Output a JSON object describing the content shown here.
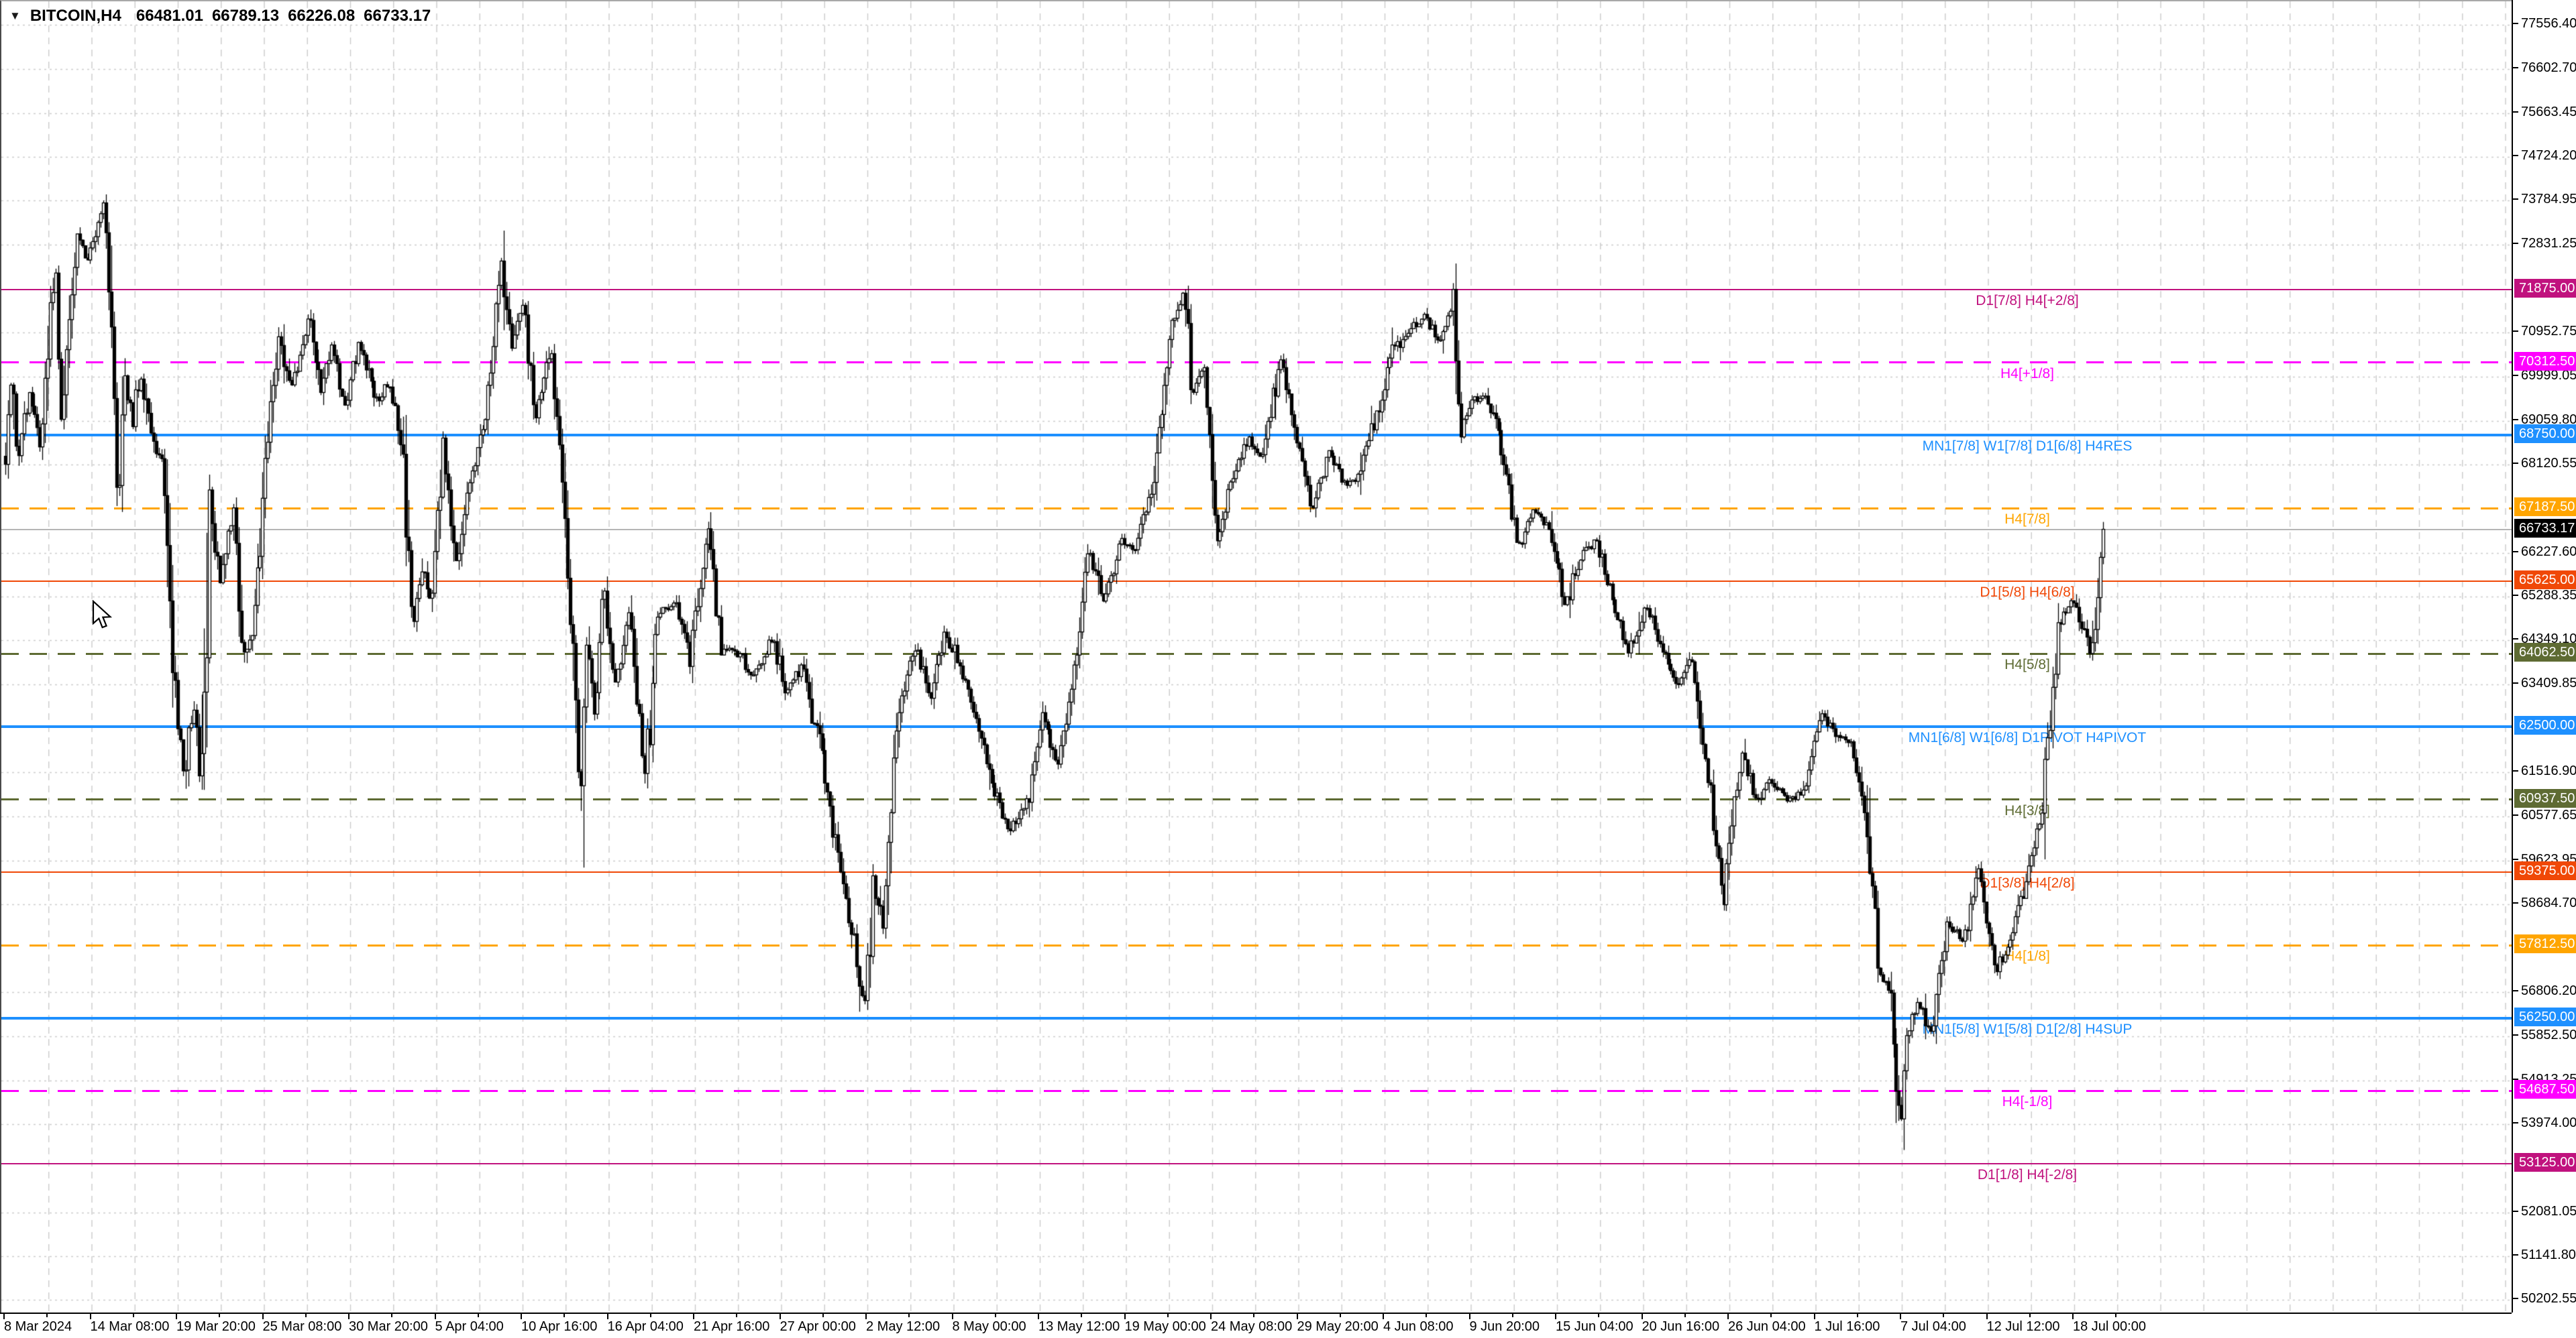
{
  "header": {
    "dropdown_icon": "▼",
    "symbol": "BITCOIN,H4",
    "open": "66481.01",
    "high": "66789.13",
    "low": "66226.08",
    "close": "66733.17"
  },
  "colors": {
    "background": "#ffffff",
    "grid": "#cbcbcb",
    "bar_outline": "#000000",
    "bull_fill": "#ffffff",
    "bear_fill": "#000000",
    "bid_line": "#b5b5b5",
    "axis_text": "#000000",
    "current_price_badge": "#000000",
    "blue": "#1e90ff",
    "magenta": "#ff00ff",
    "violet_red": "#c0127e",
    "orange": "#ffa500",
    "orange_red": "#f04807",
    "olive": "#5e6b33"
  },
  "chart_data": {
    "type": "candlestick",
    "symbol": "BITCOIN",
    "timeframe": "H4",
    "current_bar_ohlc": {
      "open": 66481.01,
      "high": 66789.13,
      "low": 66226.08,
      "close": 66733.17
    },
    "last_price": 66733.17,
    "bid_price": {
      "value": "66733.17",
      "price": 66733.17
    },
    "y_axis_ticks": [
      "77556.40",
      "76602.70",
      "75663.45",
      "74724.20",
      "73784.95",
      "72831.25",
      "70952.75",
      "69999.05",
      "69059.80",
      "68120.55",
      "66227.60",
      "65288.35",
      "64349.10",
      "63409.85",
      "61516.90",
      "60577.65",
      "59623.95",
      "58684.70",
      "56806.20",
      "55852.50",
      "54913.25",
      "53974.00",
      "52081.05",
      "51141.80",
      "50202.55"
    ],
    "x_axis_labels": [
      "8 Mar 2024",
      "14 Mar 08:00",
      "19 Mar 20:00",
      "25 Mar 08:00",
      "30 Mar 20:00",
      "5 Apr 04:00",
      "10 Apr 16:00",
      "16 Apr 04:00",
      "21 Apr 16:00",
      "27 Apr 00:00",
      "2 May 12:00",
      "8 May 00:00",
      "13 May 12:00",
      "19 May 00:00",
      "24 May 08:00",
      "29 May 20:00",
      "4 Jun 08:00",
      "9 Jun 20:00",
      "15 Jun 04:00",
      "20 Jun 16:00",
      "26 Jun 04:00",
      "1 Jul 16:00",
      "7 Jul 04:00",
      "12 Jul 12:00",
      "18 Jul 00:00"
    ],
    "murrey_levels": [
      {
        "label": "D1[7/8] H4[+2/8]",
        "price": 71875.0,
        "value": "71875.00",
        "color": "violet_red",
        "style": "solid",
        "weight": 2
      },
      {
        "label": "H4[+1/8]",
        "price": 70312.5,
        "value": "70312.50",
        "color": "magenta",
        "style": "dashed",
        "weight": 3
      },
      {
        "label": "MN1[7/8] W1[7/8] D1[6/8] H4RES",
        "price": 68750.0,
        "value": "68750.00",
        "color": "blue",
        "style": "solid",
        "weight": 4
      },
      {
        "label": "H4[7/8]",
        "price": 67187.5,
        "value": "67187.50",
        "color": "orange",
        "style": "dashed",
        "weight": 3
      },
      {
        "label": "D1[5/8] H4[6/8]",
        "price": 65625.0,
        "value": "65625.00",
        "color": "orange_red",
        "style": "solid",
        "weight": 2
      },
      {
        "label": "H4[5/8]",
        "price": 64062.5,
        "value": "64062.50",
        "color": "olive",
        "style": "dashed",
        "weight": 3
      },
      {
        "label": "MN1[6/8] W1[6/8] D1PIVOT H4PIVOT",
        "price": 62500.0,
        "value": "62500.00",
        "color": "blue",
        "style": "solid",
        "weight": 4
      },
      {
        "label": "H4[3/8]",
        "price": 60937.5,
        "value": "60937.50",
        "color": "olive",
        "style": "dashed",
        "weight": 3
      },
      {
        "label": "D1[3/8] H4[2/8]",
        "price": 59375.0,
        "value": "59375.00",
        "color": "orange_red",
        "style": "solid",
        "weight": 2
      },
      {
        "label": "H4[1/8]",
        "price": 57812.5,
        "value": "57812.50",
        "color": "orange",
        "style": "dashed",
        "weight": 3
      },
      {
        "label": "MN1[5/8] W1[5/8] D1[2/8] H4SUP",
        "price": 56250.0,
        "value": "56250.00",
        "color": "blue",
        "style": "solid",
        "weight": 4
      },
      {
        "label": "H4[-1/8]",
        "price": 54687.5,
        "value": "54687.50",
        "color": "magenta",
        "style": "dashed",
        "weight": 3
      },
      {
        "label": "D1[1/8] H4[-2/8]",
        "price": 53125.0,
        "value": "53125.00",
        "color": "violet_red",
        "style": "solid",
        "weight": 2
      }
    ],
    "price_path": [
      [
        0,
        68300
      ],
      [
        0.3,
        69900
      ],
      [
        0.7,
        68200
      ],
      [
        1.5,
        69600
      ],
      [
        2.2,
        68500
      ],
      [
        3.2,
        72400
      ],
      [
        3.5,
        69100
      ],
      [
        4,
        71500
      ],
      [
        4.5,
        73000
      ],
      [
        5.2,
        72500
      ],
      [
        6.2,
        73750
      ],
      [
        6.6,
        71500
      ],
      [
        7.1,
        67000
      ],
      [
        7.5,
        69800
      ],
      [
        8,
        69000
      ],
      [
        8.5,
        70000
      ],
      [
        9.3,
        68600
      ],
      [
        10,
        67800
      ],
      [
        10.6,
        63400
      ],
      [
        11.2,
        61500
      ],
      [
        11.8,
        63000
      ],
      [
        12.3,
        60850
      ],
      [
        12.8,
        67400
      ],
      [
        13.5,
        65500
      ],
      [
        14.3,
        67200
      ],
      [
        15,
        63800
      ],
      [
        15.6,
        64600
      ],
      [
        16.3,
        67900
      ],
      [
        17.2,
        71000
      ],
      [
        18,
        69800
      ],
      [
        19.1,
        71400
      ],
      [
        19.8,
        69600
      ],
      [
        20.5,
        70700
      ],
      [
        21.3,
        69300
      ],
      [
        22.2,
        70800
      ],
      [
        23.3,
        69500
      ],
      [
        24.2,
        69900
      ],
      [
        25,
        68300
      ],
      [
        25.5,
        64600
      ],
      [
        26.2,
        65900
      ],
      [
        26.8,
        65000
      ],
      [
        27.5,
        68600
      ],
      [
        28.3,
        66000
      ],
      [
        29.2,
        67800
      ],
      [
        30.2,
        69300
      ],
      [
        31.2,
        72600
      ],
      [
        31.8,
        70600
      ],
      [
        32.5,
        71600
      ],
      [
        33.3,
        69100
      ],
      [
        34.2,
        70500
      ],
      [
        35.2,
        67100
      ],
      [
        36.1,
        60700
      ],
      [
        36.5,
        64300
      ],
      [
        37,
        62800
      ],
      [
        37.6,
        65600
      ],
      [
        38.3,
        63300
      ],
      [
        39.2,
        65000
      ],
      [
        40.1,
        61300
      ],
      [
        41,
        64900
      ],
      [
        42.1,
        65200
      ],
      [
        43,
        63900
      ],
      [
        44.1,
        66800
      ],
      [
        45,
        64200
      ],
      [
        46.1,
        64000
      ],
      [
        47,
        63600
      ],
      [
        48.2,
        64400
      ],
      [
        49.1,
        63200
      ],
      [
        50,
        63800
      ],
      [
        51.1,
        62300
      ],
      [
        52,
        60300
      ],
      [
        53.1,
        58300
      ],
      [
        54,
        56600
      ],
      [
        54.5,
        59100
      ],
      [
        55.2,
        58300
      ],
      [
        56.1,
        62900
      ],
      [
        57.2,
        64300
      ],
      [
        58.1,
        63100
      ],
      [
        59,
        64500
      ],
      [
        60.1,
        63700
      ],
      [
        61,
        62600
      ],
      [
        62.1,
        61200
      ],
      [
        63,
        60200
      ],
      [
        64.1,
        60900
      ],
      [
        65.2,
        62700
      ],
      [
        66.1,
        61700
      ],
      [
        67,
        63200
      ],
      [
        68.1,
        66300
      ],
      [
        69,
        65200
      ],
      [
        70.1,
        66500
      ],
      [
        71,
        66300
      ],
      [
        72.1,
        67600
      ],
      [
        73.2,
        71100
      ],
      [
        74.1,
        71900
      ],
      [
        74.6,
        69600
      ],
      [
        75.3,
        70300
      ],
      [
        76.1,
        66400
      ],
      [
        77,
        67800
      ],
      [
        78.1,
        68700
      ],
      [
        79,
        68300
      ],
      [
        80.1,
        70500
      ],
      [
        81,
        68800
      ],
      [
        82.1,
        67200
      ],
      [
        83.2,
        68400
      ],
      [
        84.1,
        67700
      ],
      [
        85,
        67800
      ],
      [
        86.1,
        69100
      ],
      [
        87.2,
        70600
      ],
      [
        88.1,
        71000
      ],
      [
        89.2,
        71300
      ],
      [
        90.1,
        70800
      ],
      [
        91,
        71700
      ],
      [
        91.5,
        68900
      ],
      [
        92.2,
        69500
      ],
      [
        93.1,
        69600
      ],
      [
        94,
        68500
      ],
      [
        95.1,
        66300
      ],
      [
        96,
        67200
      ],
      [
        97.1,
        66700
      ],
      [
        98,
        65200
      ],
      [
        99.1,
        66200
      ],
      [
        100,
        66500
      ],
      [
        101.1,
        65100
      ],
      [
        102,
        64100
      ],
      [
        103.1,
        65100
      ],
      [
        104,
        64300
      ],
      [
        105.1,
        63300
      ],
      [
        106,
        64000
      ],
      [
        107.1,
        61200
      ],
      [
        108,
        58600
      ],
      [
        108.5,
        60500
      ],
      [
        109.2,
        61900
      ],
      [
        110.1,
        60900
      ],
      [
        111,
        61300
      ],
      [
        112.1,
        60900
      ],
      [
        113,
        61100
      ],
      [
        114.1,
        62800
      ],
      [
        115,
        62300
      ],
      [
        116.1,
        62100
      ],
      [
        117,
        60200
      ],
      [
        117.8,
        57200
      ],
      [
        118.5,
        56800
      ],
      [
        119.1,
        53600
      ],
      [
        119.5,
        55800
      ],
      [
        120.2,
        56600
      ],
      [
        121.1,
        55900
      ],
      [
        122,
        58300
      ],
      [
        123.1,
        57900
      ],
      [
        124,
        59400
      ],
      [
        125.1,
        57300
      ],
      [
        126,
        57900
      ],
      [
        127.1,
        59300
      ],
      [
        128,
        60800
      ],
      [
        129.1,
        64800
      ],
      [
        130,
        65200
      ],
      [
        131.1,
        64000
      ],
      [
        131.7,
        66400
      ],
      [
        132,
        66733.17
      ]
    ]
  }
}
